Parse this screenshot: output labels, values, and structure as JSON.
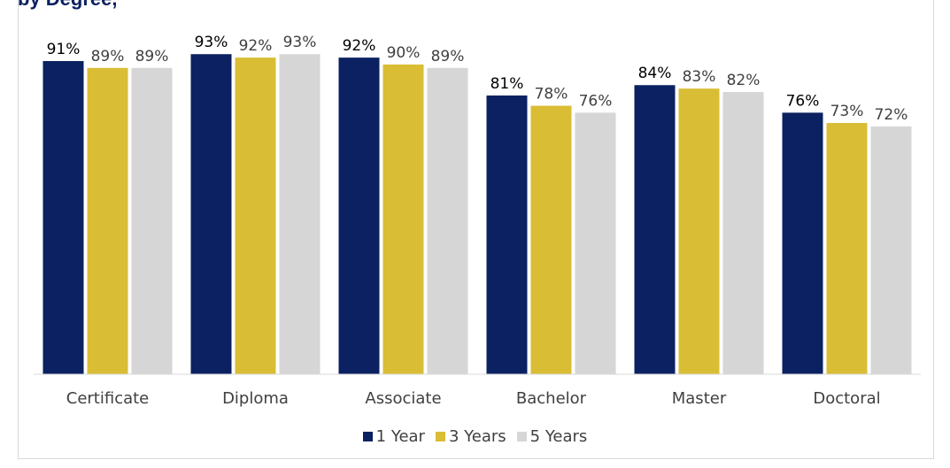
{
  "chart_data": {
    "type": "bar",
    "title": "",
    "categories": [
      "Certificate",
      "Diploma",
      "Associate",
      "Bachelor",
      "Master",
      "Doctoral"
    ],
    "series": [
      {
        "name": "1 Year",
        "color": "#0b2161",
        "values": [
          91,
          93,
          92,
          81,
          84,
          76
        ],
        "labels": [
          "91%",
          "93%",
          "92%",
          "81%",
          "84%",
          "76%"
        ]
      },
      {
        "name": "3 Years",
        "color": "#d9bd35",
        "values": [
          89,
          92,
          90,
          78,
          83,
          73
        ],
        "labels": [
          "89%",
          "92%",
          "90%",
          "78%",
          "83%",
          "73%"
        ]
      },
      {
        "name": "5 Years",
        "color": "#d6d6d6",
        "values": [
          89,
          93,
          89,
          76,
          82,
          72
        ],
        "labels": [
          "89%",
          "93%",
          "89%",
          "76%",
          "82%",
          "72%"
        ]
      }
    ],
    "xlabel": "",
    "ylabel": "",
    "ylim": [
      0,
      100
    ],
    "grid": false,
    "legend": "bottom"
  }
}
